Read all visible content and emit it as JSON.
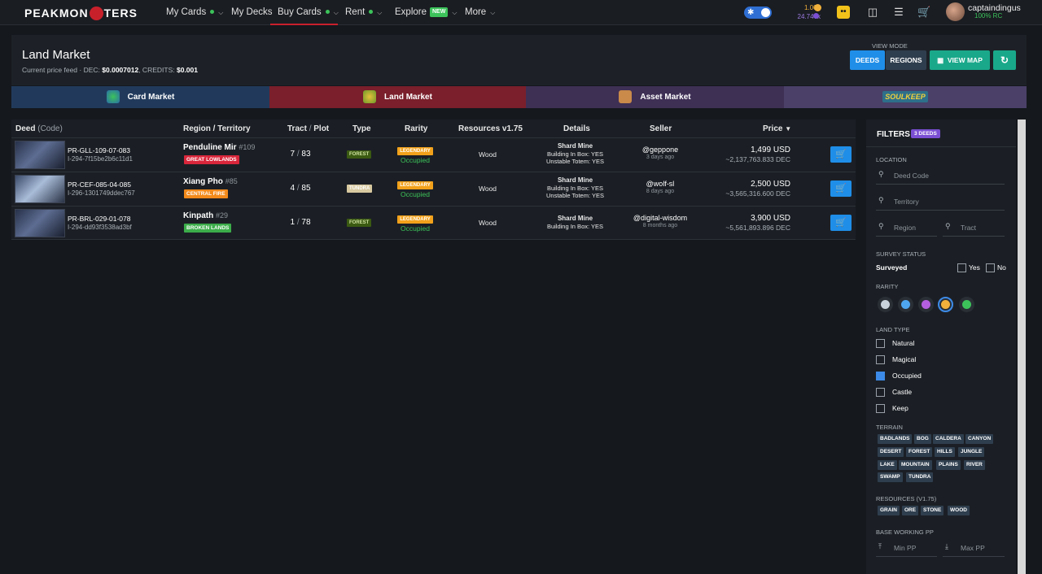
{
  "nav": {
    "logo": "PEAKMONSTERS",
    "items": [
      {
        "label": "My Cards",
        "dot": true,
        "chevron": true
      },
      {
        "label": "My Decks"
      },
      {
        "label": "Buy Cards",
        "dot": true,
        "chevron": true
      },
      {
        "label": "Rent",
        "dot": true,
        "chevron": true
      },
      {
        "label": "Explore",
        "badge": "NEW",
        "chevron": true
      },
      {
        "label": "More",
        "chevron": true
      }
    ],
    "balance_dec": "1.000",
    "balance_sps": "24.747k",
    "username": "captaindingus",
    "rc": "100% RC"
  },
  "header": {
    "title": "Land Market",
    "price_feed_label": "Current price feed · DEC:",
    "dec_price": "$0.0007012",
    "credits_label": ", CREDITS:",
    "credits_price": "$0.001",
    "view_mode_label": "VIEW MODE",
    "deeds_button": "DEEDS",
    "regions_button": "REGIONS",
    "view_map_button": "VIEW MAP"
  },
  "market_tabs": [
    {
      "label": "Card Market"
    },
    {
      "label": "Land Market"
    },
    {
      "label": "Asset Market"
    },
    {
      "label": "SOULKEEP"
    }
  ],
  "table": {
    "headers": {
      "deed": "Deed",
      "code": "(Code)",
      "region": "Region / Territory",
      "tract": "Tract",
      "plot": "Plot",
      "type": "Type",
      "rarity": "Rarity",
      "resources": "Resources v1.75",
      "details": "Details",
      "seller": "Seller",
      "price": "Price"
    },
    "rows": [
      {
        "deed": "PR-GLL-109-07-083",
        "code": "I-294-7f15be2b6c11d1",
        "region": "Penduline Mir",
        "region_num": "#109",
        "territory": "GREAT LOWLANDS",
        "tract": "7",
        "plot": "83",
        "type": "FOREST",
        "rarity": "LEGENDARY",
        "status": "Occupied",
        "resource": "Wood",
        "detail_title": "Shard Mine",
        "detail_lines": [
          "Building In Box: YES",
          "Unstable Totem: YES"
        ],
        "seller": "@geppone",
        "seller_time": "3 days ago",
        "price_usd": "1,499 USD",
        "price_dec": "~2,137,763.833 DEC"
      },
      {
        "deed": "PR-CEF-085-04-085",
        "code": "I-296-1301749ddec767",
        "region": "Xiang Pho",
        "region_num": "#85",
        "territory": "CENTRAL FIRE",
        "tract": "4",
        "plot": "85",
        "type": "TUNDRA",
        "rarity": "LEGENDARY",
        "status": "Occupied",
        "resource": "Wood",
        "detail_title": "Shard Mine",
        "detail_lines": [
          "Building In Box: YES",
          "Unstable Totem: YES"
        ],
        "seller": "@wolf-sl",
        "seller_time": "8 days ago",
        "price_usd": "2,500 USD",
        "price_dec": "~3,565,316.600 DEC"
      },
      {
        "deed": "PR-BRL-029-01-078",
        "code": "I-294-dd93f3538ad3bf",
        "region": "Kinpath",
        "region_num": "#29",
        "territory": "BROKEN LANDS",
        "tract": "1",
        "plot": "78",
        "type": "FOREST",
        "rarity": "LEGENDARY",
        "status": "Occupied",
        "resource": "Wood",
        "detail_title": "Shard Mine",
        "detail_lines": [
          "Building In Box: YES"
        ],
        "seller": "@digital-wisdom",
        "seller_time": "8 months ago",
        "price_usd": "3,900 USD",
        "price_dec": "~5,561,893.896 DEC"
      }
    ]
  },
  "filters": {
    "title": "FILTERS",
    "count": "3 DEEDS",
    "location_label": "LOCATION",
    "deed_code_placeholder": "Deed Code",
    "territory_placeholder": "Territory",
    "region_placeholder": "Region",
    "tract_placeholder": "Tract",
    "survey_label": "SURVEY STATUS",
    "surveyed": "Surveyed",
    "yes": "Yes",
    "no": "No",
    "rarity_label": "RARITY",
    "rarity_colors": [
      "#c9d1da",
      "#4fa6f0",
      "#b45fe0",
      "#f2b13b",
      "#3cc35a"
    ],
    "land_type_label": "LAND TYPE",
    "land_types": [
      {
        "label": "Natural",
        "checked": false
      },
      {
        "label": "Magical",
        "checked": false
      },
      {
        "label": "Occupied",
        "checked": true
      },
      {
        "label": "Castle",
        "checked": false
      },
      {
        "label": "Keep",
        "checked": false
      }
    ],
    "terrain_label": "TERRAIN",
    "terrains": [
      "BADLANDS",
      "BOG",
      "CALDERA",
      "CANYON",
      "DESERT",
      "FOREST",
      "HILLS",
      "JUNGLE",
      "LAKE",
      "MOUNTAIN",
      "PLAINS",
      "RIVER",
      "SWAMP",
      "TUNDRA"
    ],
    "resources_label": "RESOURCES (V1.75)",
    "resources": [
      "GRAIN",
      "ORE",
      "STONE",
      "WOOD"
    ],
    "pp_label": "BASE WORKING PP",
    "min_pp": "Min PP",
    "max_pp": "Max PP"
  }
}
